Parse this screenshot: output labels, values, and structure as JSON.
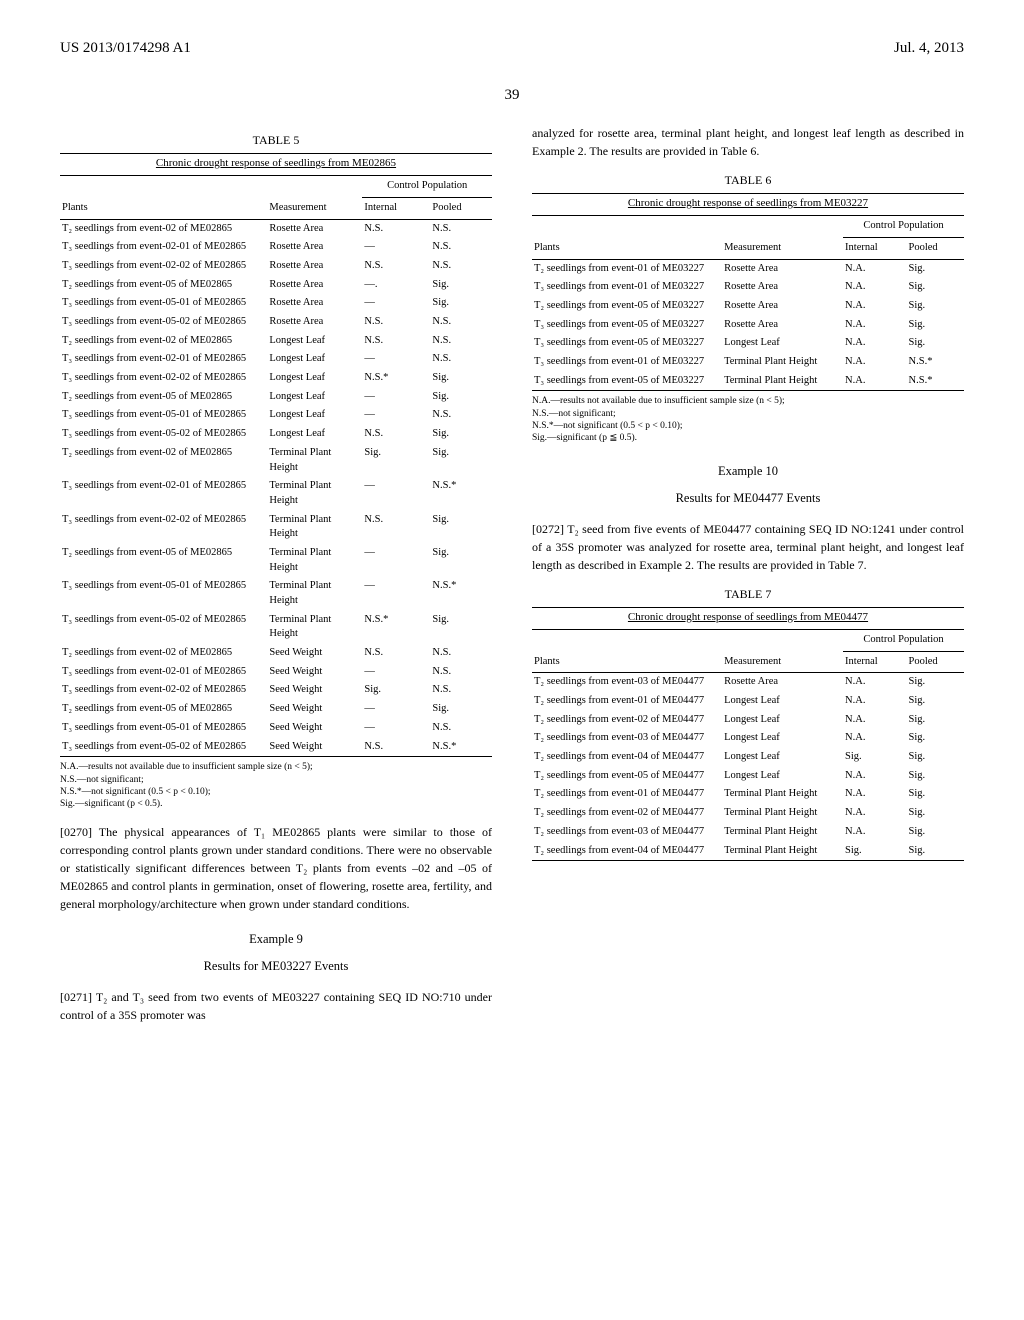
{
  "header": {
    "left": "US 2013/0174298 A1",
    "right": "Jul. 4, 2013"
  },
  "pagenum": "39",
  "table5": {
    "title": "TABLE 5",
    "caption": "Chronic drought response of seedlings from ME02865",
    "group_header": "Control Population",
    "cols": [
      "Plants",
      "Measurement",
      "Internal",
      "Pooled"
    ],
    "rows": [
      [
        "T₂ seedlings from event-02 of ME02865",
        "Rosette Area",
        "N.S.",
        "N.S."
      ],
      [
        "T₃ seedlings from event-02-01 of ME02865",
        "Rosette Area",
        "—",
        "N.S."
      ],
      [
        "T₃ seedlings from event-02-02 of ME02865",
        "Rosette Area",
        "N.S.",
        "N.S."
      ],
      [
        "T₂ seedlings from event-05 of ME02865",
        "Rosette Area",
        "—.",
        "Sig."
      ],
      [
        "T₃ seedlings from event-05-01 of ME02865",
        "Rosette Area",
        "—",
        "Sig."
      ],
      [
        "T₃ seedlings from event-05-02 of ME02865",
        "Rosette Area",
        "N.S.",
        "N.S."
      ],
      [
        "T₂ seedlings from event-02 of ME02865",
        "Longest Leaf",
        "N.S.",
        "N.S."
      ],
      [
        "T₃ seedlings from event-02-01 of ME02865",
        "Longest Leaf",
        "—",
        "N.S."
      ],
      [
        "T₃ seedlings from event-02-02 of ME02865",
        "Longest Leaf",
        "N.S.*",
        "Sig."
      ],
      [
        "T₂ seedlings from event-05 of ME02865",
        "Longest Leaf",
        "—",
        "Sig."
      ],
      [
        "T₃ seedlings from event-05-01 of ME02865",
        "Longest Leaf",
        "—",
        "N.S."
      ],
      [
        "T₃ seedlings from event-05-02 of ME02865",
        "Longest Leaf",
        "N.S.",
        "Sig."
      ],
      [
        "T₂ seedlings from event-02 of ME02865",
        "Terminal Plant Height",
        "Sig.",
        "Sig."
      ],
      [
        "T₃ seedlings from event-02-01 of ME02865",
        "Terminal Plant Height",
        "—",
        "N.S.*"
      ],
      [
        "T₃ seedlings from event-02-02 of ME02865",
        "Terminal Plant Height",
        "N.S.",
        "Sig."
      ],
      [
        "T₂ seedlings from event-05 of ME02865",
        "Terminal Plant Height",
        "—",
        "Sig."
      ],
      [
        "T₃ seedlings from event-05-01 of ME02865",
        "Terminal Plant Height",
        "—",
        "N.S.*"
      ],
      [
        "T₃ seedlings from event-05-02 of ME02865",
        "Terminal Plant Height",
        "N.S.*",
        "Sig."
      ],
      [
        "T₂ seedlings from event-02 of ME02865",
        "Seed Weight",
        "N.S.",
        "N.S."
      ],
      [
        "T₃ seedlings from event-02-01 of ME02865",
        "Seed Weight",
        "—",
        "N.S."
      ],
      [
        "T₃ seedlings from event-02-02 of ME02865",
        "Seed Weight",
        "Sig.",
        "N.S."
      ],
      [
        "T₂ seedlings from event-05 of ME02865",
        "Seed Weight",
        "—",
        "Sig."
      ],
      [
        "T₃ seedlings from event-05-01 of ME02865",
        "Seed Weight",
        "—",
        "N.S."
      ],
      [
        "T₃ seedlings from event-05-02 of ME02865",
        "Seed Weight",
        "N.S.",
        "N.S.*"
      ]
    ],
    "footnotes": [
      "N.A.—results not available due to insufficient sample size (n < 5);",
      "N.S.—not significant;",
      "N.S.*—not significant (0.5 < p < 0.10);",
      "Sig.—significant (p < 0.5)."
    ]
  },
  "para0270": {
    "num": "[0270]",
    "text": "  The physical appearances of T₁ ME02865 plants were similar to those of corresponding control plants grown under standard conditions. There were no observable or statistically significant differences between T₂ plants from events –02 and –05 of ME02865 and control plants in germination, onset of flowering, rosette area, fertility, and general morphology/architecture when grown under standard conditions."
  },
  "example9": {
    "title": "Example 9",
    "sub": "Results for ME03227 Events"
  },
  "para0271": {
    "num": "[0271]",
    "text": "  T₂ and T₃ seed from two events of ME03227 containing SEQ ID NO:710 under control of a 35S promoter was"
  },
  "right_intro": "analyzed for rosette area, terminal plant height, and longest leaf length as described in Example 2. The results are provided in Table 6.",
  "table6": {
    "title": "TABLE 6",
    "caption": "Chronic drought response of seedlings from ME03227",
    "group_header": "Control Population",
    "cols": [
      "Plants",
      "Measurement",
      "Internal",
      "Pooled"
    ],
    "rows": [
      [
        "T₂ seedlings from event-01 of ME03227",
        "Rosette Area",
        "N.A.",
        "Sig."
      ],
      [
        "T₃ seedlings from event-01 of ME03227",
        "Rosette Area",
        "N.A.",
        "Sig."
      ],
      [
        "T₂ seedlings from event-05 of ME03227",
        "Rosette Area",
        "N.A.",
        "Sig."
      ],
      [
        "T₃ seedlings from event-05 of ME03227",
        "Rosette Area",
        "N.A.",
        "Sig."
      ],
      [
        "T₃ seedlings from event-05 of ME03227",
        "Longest Leaf",
        "N.A.",
        "Sig."
      ],
      [
        "T₃ seedlings from event-01 of ME03227",
        "Terminal Plant Height",
        "N.A.",
        "N.S.*"
      ],
      [
        "T₃ seedlings from event-05 of ME03227",
        "Terminal Plant Height",
        "N.A.",
        "N.S.*"
      ]
    ],
    "footnotes": [
      "N.A.—results not available due to insufficient sample size (n < 5);",
      "N.S.—not significant;",
      "N.S.*—not significant (0.5 < p < 0.10);",
      "Sig.—significant (p ≦ 0.5)."
    ]
  },
  "example10": {
    "title": "Example 10",
    "sub": "Results for ME04477 Events"
  },
  "para0272": {
    "num": "[0272]",
    "text": "  T₂ seed from five events of ME04477 containing SEQ ID NO:1241 under control of a 35S promoter was analyzed for rosette area, terminal plant height, and longest leaf length as described in Example 2. The results are provided in Table 7."
  },
  "table7": {
    "title": "TABLE 7",
    "caption": "Chronic drought response of seedlings from ME04477",
    "group_header": "Control Population",
    "cols": [
      "Plants",
      "Measurement",
      "Internal",
      "Pooled"
    ],
    "rows": [
      [
        "T₂ seedlings from event-03 of ME04477",
        "Rosette Area",
        "N.A.",
        "Sig."
      ],
      [
        "T₂ seedlings from event-01 of ME04477",
        "Longest Leaf",
        "N.A.",
        "Sig."
      ],
      [
        "T₂ seedlings from event-02 of ME04477",
        "Longest Leaf",
        "N.A.",
        "Sig."
      ],
      [
        "T₂ seedlings from event-03 of ME04477",
        "Longest Leaf",
        "N.A.",
        "Sig."
      ],
      [
        "T₂ seedlings from event-04 of ME04477",
        "Longest Leaf",
        "Sig.",
        "Sig."
      ],
      [
        "T₂ seedlings from event-05 of ME04477",
        "Longest Leaf",
        "N.A.",
        "Sig."
      ],
      [
        "T₂ seedlings from event-01 of ME04477",
        "Terminal Plant Height",
        "N.A.",
        "Sig."
      ],
      [
        "T₂ seedlings from event-02 of ME04477",
        "Terminal Plant Height",
        "N.A.",
        "Sig."
      ],
      [
        "T₂ seedlings from event-03 of ME04477",
        "Terminal Plant Height",
        "N.A.",
        "Sig."
      ],
      [
        "T₂ seedlings from event-04 of ME04477",
        "Terminal Plant Height",
        "Sig.",
        "Sig."
      ]
    ]
  }
}
